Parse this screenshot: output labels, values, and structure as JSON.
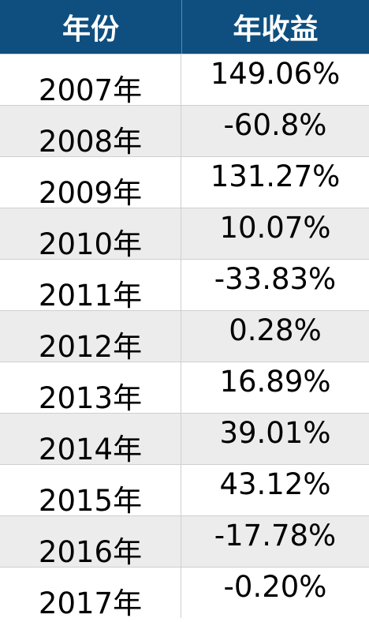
{
  "header": {
    "year_label": "年份",
    "return_label": "年收益"
  },
  "rows": [
    {
      "year": "2007年",
      "return": "149.06%"
    },
    {
      "year": "2008年",
      "return": "-60.8%"
    },
    {
      "year": "2009年",
      "return": "131.27%"
    },
    {
      "year": "2010年",
      "return": "10.07%"
    },
    {
      "year": "2011年",
      "return": "-33.83%"
    },
    {
      "year": "2012年",
      "return": "0.28%"
    },
    {
      "year": "2013年",
      "return": "16.89%"
    },
    {
      "year": "2014年",
      "return": "39.01%"
    },
    {
      "year": "2015年",
      "return": "43.12%"
    },
    {
      "year": "2016年",
      "return": "-17.78%"
    },
    {
      "year": "2017年",
      "return": "-0.20%"
    }
  ],
  "colors": {
    "header_bg": "#0e4f80",
    "header_text": "#ffffff",
    "row_alt_bg": "#ececec"
  }
}
